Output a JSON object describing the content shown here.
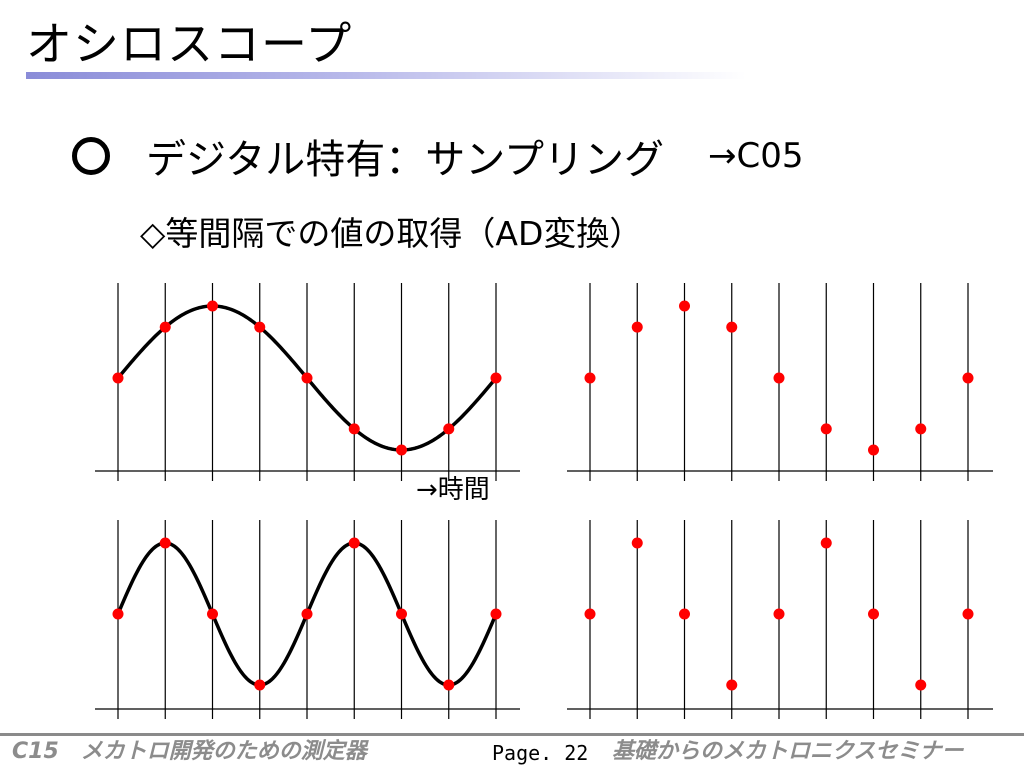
{
  "slide": {
    "title": "オシロスコープ",
    "heading": {
      "text": "デジタル特有：サンプリング",
      "reference": "→C05"
    },
    "subheading": "◇等間隔での値の取得（AD変換）",
    "time_axis_label": "→時間"
  },
  "footer": {
    "left": "C15　メカトロ開発のための測定器",
    "page": "Page. 22",
    "right": "基礎からのメカトロニクスセミナー"
  },
  "colors": {
    "sample_point": "#ff0000",
    "waveform": "#000000",
    "title_underline": "#8a8cd8",
    "footer_text": "#8c8c8c"
  },
  "chart_data": [
    {
      "type": "line",
      "series": [
        {
          "kind": "sine",
          "periods_shown": 1
        }
      ],
      "samples": 9,
      "sample_values": [
        0,
        0.707,
        1,
        0.707,
        0,
        -0.707,
        -1,
        -0.707,
        0
      ]
    },
    {
      "type": "scatter",
      "samples": 9,
      "sample_values": [
        0,
        0.707,
        1,
        0.707,
        0,
        -0.707,
        -1,
        -0.707,
        0
      ]
    },
    {
      "type": "line",
      "series": [
        {
          "kind": "sine",
          "periods_shown": 2
        }
      ],
      "samples": 9,
      "sample_values": [
        0,
        1,
        0,
        -1,
        0,
        1,
        0,
        -1,
        0
      ]
    },
    {
      "type": "scatter",
      "samples": 9,
      "sample_values": [
        0,
        1,
        0,
        -1,
        0,
        1,
        0,
        -1,
        0
      ]
    }
  ]
}
